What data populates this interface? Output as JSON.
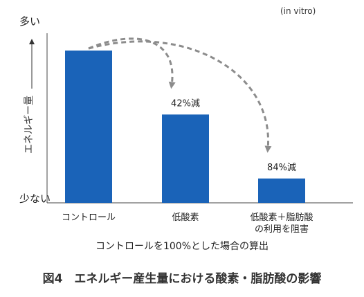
{
  "chart_data": {
    "type": "bar",
    "note": "(in vitro)",
    "ylabel": "エネルギー量",
    "ytop_label": "多い",
    "ybottom_label": "少ない",
    "ylim": [
      0,
      100
    ],
    "categories": [
      [
        "コントロール"
      ],
      [
        "低酸素"
      ],
      [
        "低酸素＋脂肪酸",
        "の利用を阻害"
      ]
    ],
    "values": [
      100,
      58,
      16
    ],
    "annotations": [
      {
        "target_index": 1,
        "text": "42%減"
      },
      {
        "target_index": 2,
        "text": "84%減"
      }
    ],
    "bar_color": "#1a63b8",
    "arrow_color": "#8c8c8c",
    "subtitle": "コントロールを100%とした場合の算出",
    "title": "図4　エネルギー産生量における酸素・脂肪酸の影響"
  }
}
